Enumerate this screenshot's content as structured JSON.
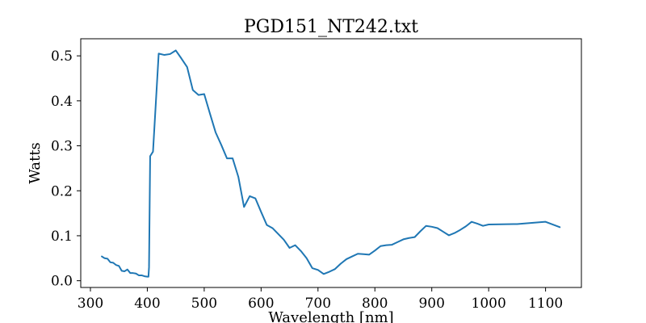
{
  "chart_data": {
    "type": "line",
    "title": "PGD151_NT242.txt",
    "xlabel": "Wavelength [nm]",
    "ylabel": "Watts",
    "xlim": [
      283,
      1163
    ],
    "ylim": [
      -0.015,
      0.538
    ],
    "xticks": [
      300,
      400,
      500,
      600,
      700,
      800,
      900,
      1000,
      1100
    ],
    "xtick_labels": [
      "300",
      "400",
      "500",
      "600",
      "700",
      "800",
      "900",
      "1000",
      "1100"
    ],
    "yticks": [
      0.0,
      0.1,
      0.2,
      0.3,
      0.4,
      0.5
    ],
    "ytick_labels": [
      "0.0",
      "0.1",
      "0.2",
      "0.3",
      "0.4",
      "0.5"
    ],
    "grid": false,
    "line_color": "#1f77b4",
    "series": [
      {
        "x": [
          320,
          325,
          330,
          335,
          340,
          345,
          350,
          355,
          360,
          365,
          370,
          375,
          380,
          385,
          390,
          395,
          400,
          402,
          403,
          405,
          410,
          420,
          430,
          440,
          450,
          460,
          470,
          480,
          490,
          500,
          510,
          520,
          530,
          540,
          550,
          560,
          570,
          580,
          590,
          600,
          610,
          620,
          630,
          640,
          650,
          660,
          670,
          680,
          690,
          700,
          710,
          720,
          730,
          740,
          750,
          760,
          770,
          780,
          790,
          800,
          810,
          820,
          830,
          840,
          850,
          860,
          870,
          880,
          890,
          900,
          910,
          920,
          930,
          940,
          950,
          960,
          970,
          980,
          990,
          1000,
          1050,
          1100,
          1125
        ],
        "y": [
          0.054,
          0.05,
          0.049,
          0.041,
          0.04,
          0.035,
          0.033,
          0.022,
          0.021,
          0.025,
          0.017,
          0.017,
          0.016,
          0.012,
          0.012,
          0.01,
          0.009,
          0.009,
          0.03,
          0.277,
          0.287,
          0.505,
          0.502,
          0.504,
          0.512,
          0.494,
          0.475,
          0.424,
          0.413,
          0.415,
          0.372,
          0.33,
          0.302,
          0.272,
          0.272,
          0.231,
          0.164,
          0.188,
          0.183,
          0.153,
          0.124,
          0.117,
          0.104,
          0.091,
          0.073,
          0.079,
          0.066,
          0.05,
          0.028,
          0.024,
          0.015,
          0.02,
          0.026,
          0.038,
          0.048,
          0.054,
          0.06,
          0.059,
          0.058,
          0.067,
          0.077,
          0.079,
          0.08,
          0.086,
          0.092,
          0.095,
          0.097,
          0.11,
          0.122,
          0.12,
          0.117,
          0.109,
          0.101,
          0.106,
          0.113,
          0.121,
          0.131,
          0.127,
          0.122,
          0.125,
          0.126,
          0.131,
          0.119
        ]
      }
    ]
  }
}
